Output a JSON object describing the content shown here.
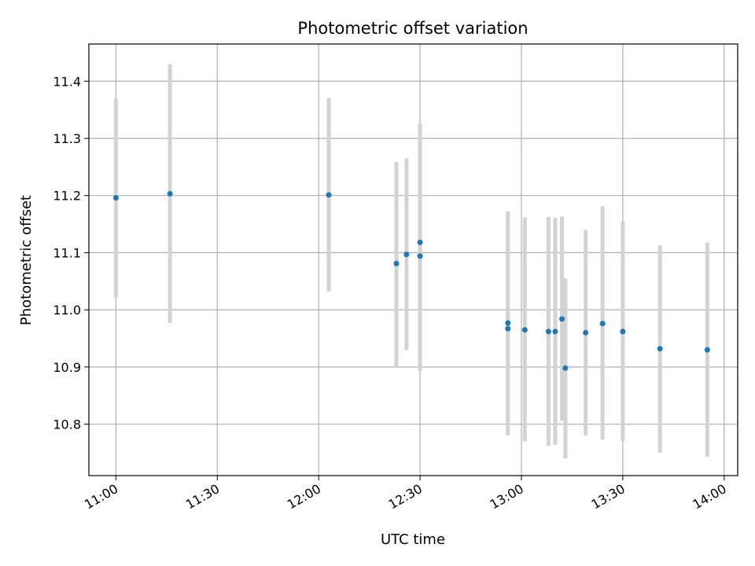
{
  "chart_data": {
    "type": "scatter",
    "title": "Photometric offset variation",
    "xlabel": "UTC time",
    "ylabel": "Photometric offset",
    "x_ticks": [
      "11:00",
      "11:30",
      "12:00",
      "12:30",
      "13:00",
      "13:30",
      "14:00"
    ],
    "y_ticks": [
      10.8,
      10.9,
      11.0,
      11.1,
      11.2,
      11.3,
      11.4
    ],
    "xlim": [
      "10:52",
      "14:04"
    ],
    "ylim": [
      10.71,
      11.465
    ],
    "grid": true,
    "colors": {
      "point": "#1f77b4",
      "errorbar": "#d3d3d3",
      "grid": "#b0b0b0"
    },
    "series": [
      {
        "x": [
          "11:00",
          "11:16",
          "12:03",
          "12:23",
          "12:26",
          "12:30",
          "12:30",
          "12:56",
          "12:56",
          "13:01",
          "13:08",
          "13:10",
          "13:12",
          "13:13",
          "13:19",
          "13:24",
          "13:30",
          "13:41",
          "13:55"
        ],
        "y": [
          11.196,
          11.203,
          11.201,
          11.081,
          11.097,
          11.118,
          11.094,
          10.977,
          10.967,
          10.965,
          10.962,
          10.962,
          10.984,
          10.898,
          10.96,
          10.976,
          10.962,
          10.932,
          10.93
        ],
        "ylow": [
          11.022,
          10.977,
          11.032,
          10.9,
          10.93,
          10.893,
          10.893,
          10.783,
          10.78,
          10.77,
          10.762,
          10.764,
          10.806,
          10.74,
          10.78,
          10.773,
          10.77,
          10.75,
          10.743
        ],
        "yhigh": [
          11.37,
          11.43,
          11.371,
          11.259,
          11.265,
          11.326,
          11.295,
          11.172,
          11.153,
          11.162,
          11.163,
          11.161,
          11.163,
          11.055,
          11.14,
          11.181,
          11.155,
          11.113,
          11.118
        ]
      }
    ]
  }
}
